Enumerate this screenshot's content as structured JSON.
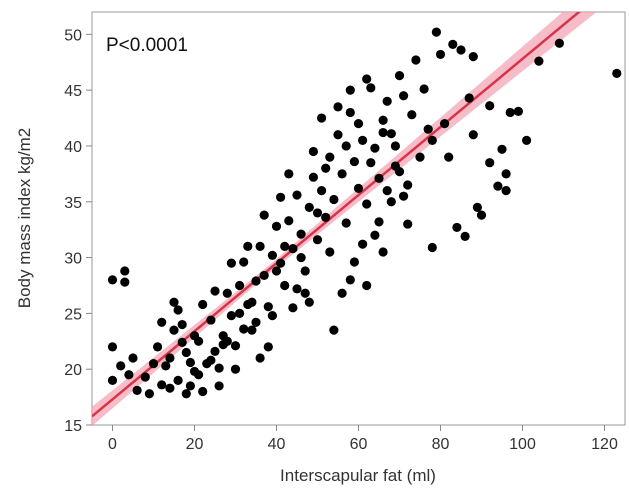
{
  "chart_data": {
    "type": "scatter",
    "title": "",
    "xlabel": "Interscapular fat (ml)",
    "ylabel": "Body mass index kg/m2",
    "xlim": [
      -5,
      125
    ],
    "ylim": [
      15,
      52
    ],
    "xticks": [
      "0",
      "20",
      "40",
      "60",
      "80",
      "100",
      "120"
    ],
    "yticks": [
      "15",
      "20",
      "25",
      "30",
      "35",
      "40",
      "45",
      "50"
    ],
    "grid": false,
    "annotation": "P<0.0001",
    "point_color": "#000000",
    "fit_line_color": "#d9334a",
    "confidence_band_color": "#f3a6b4",
    "fit": {
      "intercept": 17.3,
      "slope": 0.305,
      "x_range": [
        -5,
        125
      ]
    },
    "series": [
      {
        "points": [
          [
            0,
            28
          ],
          [
            3,
            28.8
          ],
          [
            3,
            27.8
          ],
          [
            0,
            22
          ],
          [
            2,
            20.3
          ],
          [
            5,
            21
          ],
          [
            0,
            19
          ],
          [
            4,
            19.5
          ],
          [
            6,
            18.1
          ],
          [
            8,
            19.3
          ],
          [
            9,
            17.8
          ],
          [
            10,
            20.5
          ],
          [
            11,
            22
          ],
          [
            12,
            24.2
          ],
          [
            13,
            20.3
          ],
          [
            12,
            18.6
          ],
          [
            14,
            21
          ],
          [
            15,
            23.5
          ],
          [
            16,
            25.3
          ],
          [
            17,
            24
          ],
          [
            15,
            26
          ],
          [
            18,
            21.5
          ],
          [
            19,
            18.5
          ],
          [
            20,
            19.8
          ],
          [
            21,
            22.5
          ],
          [
            22,
            25.8
          ],
          [
            24,
            24.4
          ],
          [
            25,
            21.6
          ],
          [
            26,
            20.1
          ],
          [
            27,
            23
          ],
          [
            28,
            26.8
          ],
          [
            29,
            24.8
          ],
          [
            30,
            22.1
          ],
          [
            31,
            27.5
          ],
          [
            32,
            29.6
          ],
          [
            33,
            25.8
          ],
          [
            34,
            23.5
          ],
          [
            35,
            27.9
          ],
          [
            36,
            31
          ],
          [
            37,
            28.4
          ],
          [
            38,
            25.6
          ],
          [
            39,
            30.2
          ],
          [
            40,
            32.8
          ],
          [
            41,
            29.5
          ],
          [
            42,
            27.5
          ],
          [
            43,
            33.3
          ],
          [
            44,
            30.8
          ],
          [
            45,
            35.6
          ],
          [
            46,
            32.1
          ],
          [
            47,
            28.8
          ],
          [
            48,
            34.5
          ],
          [
            49,
            37.2
          ],
          [
            50,
            31.6
          ],
          [
            51,
            36
          ],
          [
            52,
            33.6
          ],
          [
            53,
            39
          ],
          [
            54,
            35.2
          ],
          [
            55,
            41
          ],
          [
            56,
            37.5
          ],
          [
            57,
            33.1
          ],
          [
            58,
            43
          ],
          [
            59,
            38.6
          ],
          [
            60,
            36.2
          ],
          [
            61,
            40.5
          ],
          [
            62,
            34.8
          ],
          [
            63,
            45.2
          ],
          [
            64,
            39.8
          ],
          [
            65,
            37.1
          ],
          [
            66,
            42.3
          ],
          [
            67,
            44
          ],
          [
            68,
            41.1
          ],
          [
            69,
            38.2
          ],
          [
            70,
            46.3
          ],
          [
            71,
            35.5
          ],
          [
            72,
            33
          ],
          [
            74,
            47.7
          ],
          [
            76,
            45.1
          ],
          [
            77,
            41.5
          ],
          [
            78,
            30.9
          ],
          [
            79,
            50.2
          ],
          [
            80,
            48.2
          ],
          [
            81,
            42
          ],
          [
            83,
            49.1
          ],
          [
            84,
            32.7
          ],
          [
            85,
            48.6
          ],
          [
            86,
            31.9
          ],
          [
            87,
            44.3
          ],
          [
            88,
            48
          ],
          [
            90,
            33.8
          ],
          [
            92,
            43.6
          ],
          [
            94,
            36.4
          ],
          [
            95,
            39.7
          ],
          [
            96,
            37.5
          ],
          [
            97,
            43
          ],
          [
            99,
            43.1
          ],
          [
            104,
            47.6
          ],
          [
            109,
            49.2
          ],
          [
            123,
            46.5
          ],
          [
            54,
            23.5
          ],
          [
            56,
            26.8
          ],
          [
            66,
            30.5
          ],
          [
            58,
            28
          ],
          [
            62,
            27.5
          ],
          [
            48,
            26
          ],
          [
            44,
            25.5
          ],
          [
            38,
            22
          ],
          [
            36,
            21
          ],
          [
            30,
            20
          ],
          [
            26,
            18.5
          ],
          [
            22,
            18
          ],
          [
            18,
            17.8
          ],
          [
            16,
            19
          ],
          [
            14,
            18.3
          ],
          [
            20,
            23
          ],
          [
            23,
            20.5
          ],
          [
            28,
            22.5
          ],
          [
            32,
            23.6
          ],
          [
            34,
            26
          ],
          [
            40,
            28.8
          ],
          [
            42,
            31
          ],
          [
            46,
            30
          ],
          [
            50,
            34
          ],
          [
            52,
            38
          ],
          [
            55,
            43.5
          ],
          [
            57,
            40
          ],
          [
            60,
            42
          ],
          [
            63,
            38.5
          ],
          [
            65,
            33.2
          ],
          [
            67,
            36
          ],
          [
            69,
            40
          ],
          [
            71,
            44.5
          ],
          [
            73,
            42.8
          ],
          [
            75,
            39
          ],
          [
            68,
            35
          ],
          [
            64,
            32
          ],
          [
            61,
            31.2
          ],
          [
            59,
            29.6
          ],
          [
            53,
            30.5
          ],
          [
            47,
            26.8
          ],
          [
            45,
            27.2
          ],
          [
            39,
            24.8
          ],
          [
            35,
            24.2
          ],
          [
            31,
            25
          ],
          [
            27,
            22.2
          ],
          [
            24,
            20.8
          ],
          [
            21,
            19.5
          ],
          [
            19,
            20.6
          ],
          [
            17,
            22.4
          ],
          [
            25,
            27
          ],
          [
            29,
            29.5
          ],
          [
            33,
            31
          ],
          [
            37,
            33.8
          ],
          [
            41,
            35.4
          ],
          [
            43,
            37.5
          ],
          [
            49,
            39.5
          ],
          [
            51,
            42.5
          ],
          [
            58,
            45
          ],
          [
            62,
            46
          ],
          [
            66,
            41.2
          ],
          [
            70,
            37.7
          ],
          [
            72,
            36.5
          ],
          [
            78,
            40.5
          ],
          [
            82,
            39
          ],
          [
            88,
            41
          ],
          [
            92,
            38.5
          ],
          [
            96,
            36
          ],
          [
            101,
            40.5
          ],
          [
            89,
            34.5
          ]
        ]
      }
    ]
  }
}
